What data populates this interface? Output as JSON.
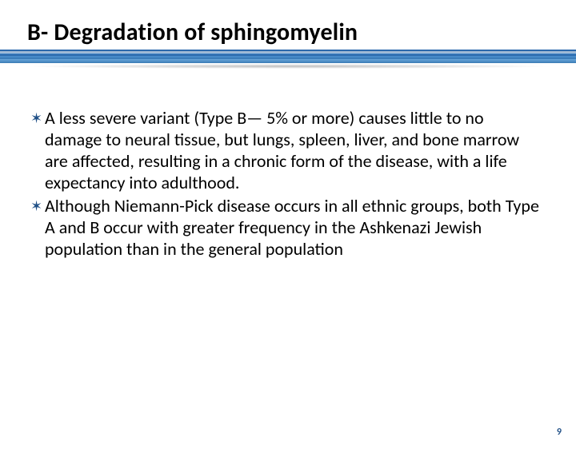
{
  "title": "B- Degradation of sphingomyelin",
  "title_color": "#000000",
  "title_fontsize": 30,
  "title_fontweight": 700,
  "band_colors": [
    "#2f6fb3",
    "#3a7fc4",
    "#4b8fce",
    "#6aa6da"
  ],
  "bullet_glyph": "✶",
  "bullet_color": "#1f4f86",
  "body_fontsize": 22,
  "body_line_height": 27,
  "bullets": [
    "A less severe variant (Type B— 5% or more) causes little to no damage to neural tissue, but lungs, spleen, liver, and bone marrow are affected, resulting in a chronic form of the disease, with a life expectancy into adulthood.",
    "Although Niemann-Pick disease occurs in all ethnic groups, both Type A and B occur with greater frequency in the Ashkenazi Jewish population than in the general population"
  ],
  "page_number": "9",
  "page_number_color": "#1f4f86",
  "background_color": "#ffffff"
}
